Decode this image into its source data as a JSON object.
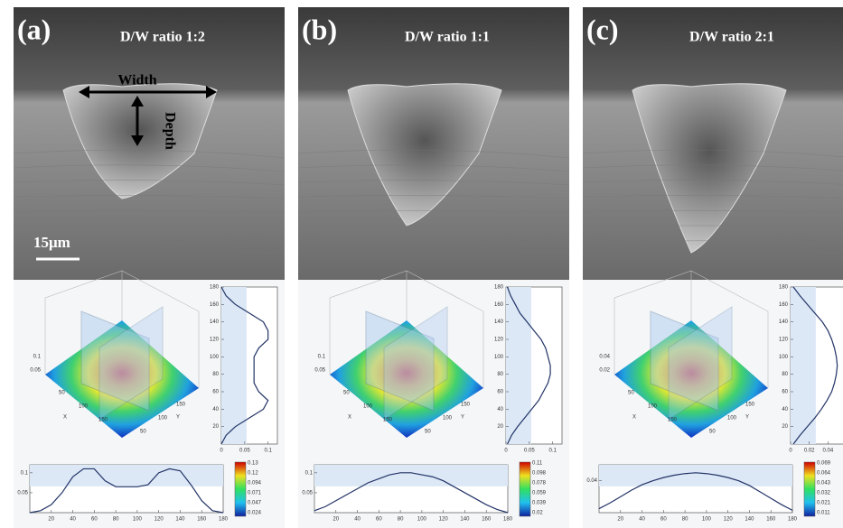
{
  "panels": [
    {
      "label": "(a)",
      "ratio": "D/W ratio 1:2",
      "width": "Width",
      "depth": "Depth",
      "scale": "15μm",
      "surface": {
        "zticks": [
          "0.1",
          "0.05"
        ],
        "x_label": "X",
        "y_label": "Y",
        "xticks": [
          "50",
          "100",
          "150"
        ],
        "yticks": [
          "50",
          "100",
          "150"
        ]
      },
      "colorbar": [
        "0.13",
        "0.12",
        "0.094",
        "0.071",
        "0.047",
        "0.024"
      ],
      "side_profile": {
        "y": [
          0,
          10,
          20,
          30,
          40,
          50,
          60,
          70,
          80,
          90,
          100,
          110,
          120,
          130,
          140,
          150,
          160,
          170,
          180
        ],
        "values": [
          0,
          0.01,
          0.03,
          0.06,
          0.09,
          0.1,
          0.08,
          0.07,
          0.07,
          0.07,
          0.07,
          0.08,
          0.1,
          0.1,
          0.09,
          0.06,
          0.03,
          0.01,
          0
        ],
        "ylim": [
          0,
          180
        ],
        "yticks": [
          20,
          40,
          60,
          80,
          100,
          120,
          140,
          160,
          180
        ],
        "xlim": [
          0,
          0.12
        ],
        "xticks": [
          0,
          0.05,
          0.1
        ]
      },
      "bottom_profile": {
        "x": [
          0,
          10,
          20,
          30,
          40,
          50,
          60,
          70,
          80,
          90,
          100,
          110,
          120,
          130,
          140,
          150,
          160,
          170,
          180
        ],
        "values": [
          0,
          0.005,
          0.02,
          0.05,
          0.09,
          0.11,
          0.11,
          0.08,
          0.065,
          0.065,
          0.065,
          0.07,
          0.1,
          0.11,
          0.105,
          0.07,
          0.03,
          0.005,
          0
        ],
        "xlim": [
          0,
          180
        ],
        "xticks": [
          20,
          40,
          60,
          80,
          100,
          120,
          140,
          160,
          180
        ],
        "ylim": [
          0,
          0.12
        ],
        "yticks": [
          0.05,
          0.1
        ]
      }
    },
    {
      "label": "(b)",
      "ratio": "D/W ratio 1:1",
      "surface": {
        "zticks": [
          "0.1",
          "0.05"
        ],
        "x_label": "X",
        "y_label": "Y",
        "xticks": [
          "50",
          "100",
          "150"
        ],
        "yticks": [
          "50",
          "100",
          "150"
        ]
      },
      "colorbar": [
        "0.11",
        "0.098",
        "0.078",
        "0.059",
        "0.039",
        "0.02"
      ],
      "side_profile": {
        "y": [
          0,
          10,
          20,
          30,
          40,
          50,
          60,
          70,
          80,
          90,
          100,
          110,
          120,
          130,
          140,
          150,
          160,
          170,
          180
        ],
        "values": [
          0.003,
          0.012,
          0.025,
          0.04,
          0.055,
          0.07,
          0.08,
          0.09,
          0.095,
          0.095,
          0.09,
          0.085,
          0.075,
          0.06,
          0.045,
          0.03,
          0.02,
          0.01,
          0.003
        ],
        "ylim": [
          0,
          180
        ],
        "yticks": [
          20,
          40,
          60,
          80,
          100,
          120,
          140,
          160,
          180
        ],
        "xlim": [
          0,
          0.12
        ],
        "xticks": [
          0,
          0.05,
          0.1
        ]
      },
      "bottom_profile": {
        "x": [
          0,
          10,
          20,
          30,
          40,
          50,
          60,
          70,
          80,
          90,
          100,
          110,
          120,
          130,
          140,
          150,
          160,
          170,
          180
        ],
        "values": [
          0.005,
          0.015,
          0.03,
          0.045,
          0.06,
          0.075,
          0.085,
          0.095,
          0.1,
          0.1,
          0.095,
          0.09,
          0.08,
          0.065,
          0.05,
          0.035,
          0.02,
          0.008,
          0
        ],
        "xlim": [
          0,
          180
        ],
        "xticks": [
          20,
          40,
          60,
          80,
          100,
          120,
          140,
          160,
          180
        ],
        "ylim": [
          0,
          0.12
        ],
        "yticks": [
          0.05,
          0.1
        ]
      }
    },
    {
      "label": "(c)",
      "ratio": "D/W ratio 2:1",
      "surface": {
        "zticks": [
          "0.04",
          "0.02"
        ],
        "x_label": "X",
        "y_label": "Y",
        "xticks": [
          "50",
          "100",
          "150"
        ],
        "yticks": [
          "50",
          "100",
          "150"
        ]
      },
      "colorbar": [
        "0.069",
        "0.064",
        "0.043",
        "0.032",
        "0.021",
        "0.011"
      ],
      "side_profile": {
        "y": [
          0,
          10,
          20,
          30,
          40,
          50,
          60,
          70,
          80,
          90,
          100,
          110,
          120,
          130,
          140,
          150,
          160,
          170,
          180
        ],
        "values": [
          0.003,
          0.01,
          0.018,
          0.026,
          0.033,
          0.039,
          0.044,
          0.047,
          0.049,
          0.05,
          0.049,
          0.047,
          0.044,
          0.04,
          0.034,
          0.026,
          0.018,
          0.01,
          0.003
        ],
        "ylim": [
          0,
          180
        ],
        "yticks": [
          20,
          40,
          60,
          80,
          100,
          120,
          140,
          160,
          180
        ],
        "xlim": [
          0,
          0.06
        ],
        "xticks": [
          0,
          0.02,
          0.04
        ]
      },
      "bottom_profile": {
        "x": [
          0,
          10,
          20,
          30,
          40,
          50,
          60,
          70,
          80,
          90,
          100,
          110,
          120,
          130,
          140,
          150,
          160,
          170,
          180
        ],
        "values": [
          0.005,
          0.012,
          0.02,
          0.028,
          0.035,
          0.04,
          0.044,
          0.047,
          0.049,
          0.05,
          0.049,
          0.047,
          0.044,
          0.04,
          0.034,
          0.026,
          0.018,
          0.01,
          0.003
        ],
        "xlim": [
          0,
          180
        ],
        "xticks": [
          20,
          40,
          60,
          80,
          100,
          120,
          140,
          160,
          180
        ],
        "ylim": [
          0,
          0.06
        ],
        "yticks": [
          0.04
        ]
      }
    }
  ]
}
